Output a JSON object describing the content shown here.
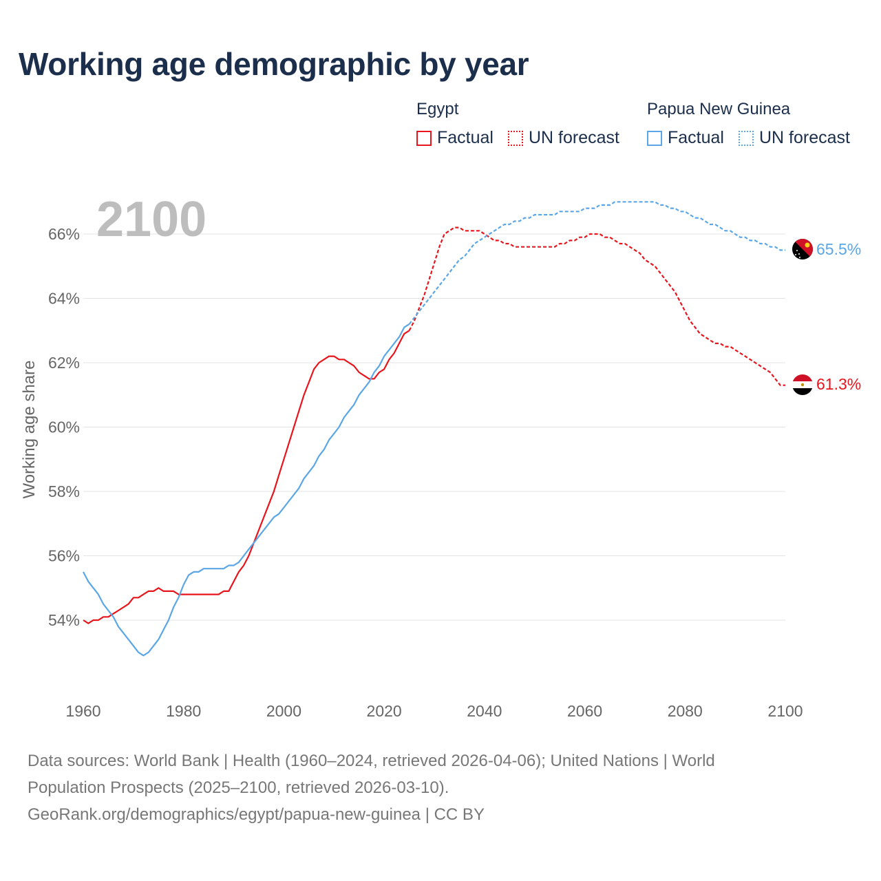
{
  "title": "Working age demographic by year",
  "legend": {
    "groups": [
      {
        "name": "Egypt",
        "color": "#e8141c",
        "items": [
          {
            "label": "Factual",
            "style": "solid"
          },
          {
            "label": "UN forecast",
            "style": "dotted"
          }
        ]
      },
      {
        "name": "Papua New Guinea",
        "color": "#5aa6e6",
        "items": [
          {
            "label": "Factual",
            "style": "solid"
          },
          {
            "label": "UN forecast",
            "style": "dotted"
          }
        ]
      }
    ]
  },
  "year_watermark": "2100",
  "footer": {
    "line1": "Data sources: World Bank | Health (1960–2024, retrieved 2026-04-06); United Nations | World",
    "line2": "Population Prospects (2025–2100, retrieved 2026-03-10).",
    "line3": "GeoRank.org/demographics/egypt/papua-new-guinea | CC BY"
  },
  "chart_data": {
    "type": "line",
    "title": "Working age demographic by year",
    "xlabel": "",
    "ylabel": "Working age share",
    "xlim": [
      1960,
      2100
    ],
    "ylim": [
      52,
      67.2
    ],
    "x_ticks": [
      1960,
      1980,
      2000,
      2020,
      2040,
      2060,
      2080,
      2100
    ],
    "y_ticks": [
      54,
      56,
      58,
      60,
      62,
      64,
      66
    ],
    "y_tick_labels": [
      "54%",
      "56%",
      "58%",
      "60%",
      "62%",
      "64%",
      "66%"
    ],
    "x_tick_labels": [
      "1960",
      "1980",
      "2000",
      "2020",
      "2040",
      "2060",
      "2080",
      "2100"
    ],
    "grid": true,
    "forecast_start": 2025,
    "series": [
      {
        "name": "Egypt",
        "color": "#e8141c",
        "end_label": "61.3%",
        "points": [
          [
            1960,
            54.0
          ],
          [
            1961,
            53.9
          ],
          [
            1962,
            54.0
          ],
          [
            1963,
            54.0
          ],
          [
            1964,
            54.1
          ],
          [
            1965,
            54.1
          ],
          [
            1966,
            54.2
          ],
          [
            1967,
            54.3
          ],
          [
            1968,
            54.4
          ],
          [
            1969,
            54.5
          ],
          [
            1970,
            54.7
          ],
          [
            1971,
            54.7
          ],
          [
            1972,
            54.8
          ],
          [
            1973,
            54.9
          ],
          [
            1974,
            54.9
          ],
          [
            1975,
            55.0
          ],
          [
            1976,
            54.9
          ],
          [
            1977,
            54.9
          ],
          [
            1978,
            54.9
          ],
          [
            1979,
            54.8
          ],
          [
            1980,
            54.8
          ],
          [
            1982,
            54.8
          ],
          [
            1984,
            54.8
          ],
          [
            1987,
            54.8
          ],
          [
            1988,
            54.9
          ],
          [
            1989,
            54.9
          ],
          [
            1990,
            55.2
          ],
          [
            1991,
            55.5
          ],
          [
            1992,
            55.7
          ],
          [
            1993,
            56.0
          ],
          [
            1994,
            56.4
          ],
          [
            1995,
            56.8
          ],
          [
            1996,
            57.2
          ],
          [
            1997,
            57.6
          ],
          [
            1998,
            58.0
          ],
          [
            1999,
            58.5
          ],
          [
            2000,
            59.0
          ],
          [
            2001,
            59.5
          ],
          [
            2002,
            60.0
          ],
          [
            2003,
            60.5
          ],
          [
            2004,
            61.0
          ],
          [
            2005,
            61.4
          ],
          [
            2006,
            61.8
          ],
          [
            2007,
            62.0
          ],
          [
            2008,
            62.1
          ],
          [
            2009,
            62.2
          ],
          [
            2010,
            62.2
          ],
          [
            2011,
            62.1
          ],
          [
            2012,
            62.1
          ],
          [
            2013,
            62.0
          ],
          [
            2014,
            61.9
          ],
          [
            2015,
            61.7
          ],
          [
            2016,
            61.6
          ],
          [
            2017,
            61.5
          ],
          [
            2018,
            61.5
          ],
          [
            2019,
            61.7
          ],
          [
            2020,
            61.8
          ],
          [
            2021,
            62.1
          ],
          [
            2022,
            62.3
          ],
          [
            2023,
            62.6
          ],
          [
            2024,
            62.9
          ],
          [
            2025,
            63.0
          ],
          [
            2026,
            63.3
          ],
          [
            2027,
            63.7
          ],
          [
            2028,
            64.1
          ],
          [
            2029,
            64.6
          ],
          [
            2030,
            65.1
          ],
          [
            2031,
            65.6
          ],
          [
            2032,
            66.0
          ],
          [
            2033,
            66.1
          ],
          [
            2034,
            66.2
          ],
          [
            2035,
            66.2
          ],
          [
            2036,
            66.1
          ],
          [
            2037,
            66.1
          ],
          [
            2038,
            66.1
          ],
          [
            2039,
            66.1
          ],
          [
            2040,
            66.0
          ],
          [
            2041,
            65.9
          ],
          [
            2042,
            65.8
          ],
          [
            2043,
            65.8
          ],
          [
            2044,
            65.7
          ],
          [
            2045,
            65.7
          ],
          [
            2046,
            65.6
          ],
          [
            2048,
            65.6
          ],
          [
            2050,
            65.6
          ],
          [
            2052,
            65.6
          ],
          [
            2054,
            65.6
          ],
          [
            2055,
            65.7
          ],
          [
            2056,
            65.7
          ],
          [
            2057,
            65.8
          ],
          [
            2058,
            65.8
          ],
          [
            2059,
            65.9
          ],
          [
            2060,
            65.9
          ],
          [
            2061,
            66.0
          ],
          [
            2062,
            66.0
          ],
          [
            2063,
            66.0
          ],
          [
            2064,
            65.9
          ],
          [
            2065,
            65.9
          ],
          [
            2066,
            65.8
          ],
          [
            2067,
            65.7
          ],
          [
            2068,
            65.7
          ],
          [
            2069,
            65.6
          ],
          [
            2070,
            65.5
          ],
          [
            2071,
            65.4
          ],
          [
            2072,
            65.2
          ],
          [
            2073,
            65.1
          ],
          [
            2074,
            65.0
          ],
          [
            2075,
            64.8
          ],
          [
            2076,
            64.6
          ],
          [
            2077,
            64.4
          ],
          [
            2078,
            64.2
          ],
          [
            2079,
            63.9
          ],
          [
            2080,
            63.6
          ],
          [
            2081,
            63.3
          ],
          [
            2082,
            63.1
          ],
          [
            2083,
            62.9
          ],
          [
            2084,
            62.8
          ],
          [
            2085,
            62.7
          ],
          [
            2086,
            62.6
          ],
          [
            2087,
            62.6
          ],
          [
            2088,
            62.5
          ],
          [
            2089,
            62.5
          ],
          [
            2090,
            62.4
          ],
          [
            2091,
            62.3
          ],
          [
            2092,
            62.2
          ],
          [
            2093,
            62.1
          ],
          [
            2094,
            62.0
          ],
          [
            2095,
            61.9
          ],
          [
            2096,
            61.8
          ],
          [
            2097,
            61.7
          ],
          [
            2098,
            61.5
          ],
          [
            2099,
            61.3
          ],
          [
            2100,
            61.3
          ]
        ]
      },
      {
        "name": "Papua New Guinea",
        "color": "#5aa6e6",
        "end_label": "65.5%",
        "points": [
          [
            1960,
            55.5
          ],
          [
            1961,
            55.2
          ],
          [
            1962,
            55.0
          ],
          [
            1963,
            54.8
          ],
          [
            1964,
            54.5
          ],
          [
            1965,
            54.3
          ],
          [
            1966,
            54.1
          ],
          [
            1967,
            53.8
          ],
          [
            1968,
            53.6
          ],
          [
            1969,
            53.4
          ],
          [
            1970,
            53.2
          ],
          [
            1971,
            53.0
          ],
          [
            1972,
            52.9
          ],
          [
            1973,
            53.0
          ],
          [
            1974,
            53.2
          ],
          [
            1975,
            53.4
          ],
          [
            1976,
            53.7
          ],
          [
            1977,
            54.0
          ],
          [
            1978,
            54.4
          ],
          [
            1979,
            54.7
          ],
          [
            1980,
            55.1
          ],
          [
            1981,
            55.4
          ],
          [
            1982,
            55.5
          ],
          [
            1983,
            55.5
          ],
          [
            1984,
            55.6
          ],
          [
            1985,
            55.6
          ],
          [
            1986,
            55.6
          ],
          [
            1987,
            55.6
          ],
          [
            1988,
            55.6
          ],
          [
            1989,
            55.7
          ],
          [
            1990,
            55.7
          ],
          [
            1991,
            55.8
          ],
          [
            1992,
            56.0
          ],
          [
            1993,
            56.2
          ],
          [
            1994,
            56.4
          ],
          [
            1995,
            56.6
          ],
          [
            1996,
            56.8
          ],
          [
            1997,
            57.0
          ],
          [
            1998,
            57.2
          ],
          [
            1999,
            57.3
          ],
          [
            2000,
            57.5
          ],
          [
            2001,
            57.7
          ],
          [
            2002,
            57.9
          ],
          [
            2003,
            58.1
          ],
          [
            2004,
            58.4
          ],
          [
            2005,
            58.6
          ],
          [
            2006,
            58.8
          ],
          [
            2007,
            59.1
          ],
          [
            2008,
            59.3
          ],
          [
            2009,
            59.6
          ],
          [
            2010,
            59.8
          ],
          [
            2011,
            60.0
          ],
          [
            2012,
            60.3
          ],
          [
            2013,
            60.5
          ],
          [
            2014,
            60.7
          ],
          [
            2015,
            61.0
          ],
          [
            2016,
            61.2
          ],
          [
            2017,
            61.4
          ],
          [
            2018,
            61.7
          ],
          [
            2019,
            61.9
          ],
          [
            2020,
            62.2
          ],
          [
            2021,
            62.4
          ],
          [
            2022,
            62.6
          ],
          [
            2023,
            62.8
          ],
          [
            2024,
            63.1
          ],
          [
            2025,
            63.2
          ],
          [
            2026,
            63.4
          ],
          [
            2027,
            63.6
          ],
          [
            2028,
            63.8
          ],
          [
            2029,
            64.0
          ],
          [
            2030,
            64.2
          ],
          [
            2031,
            64.4
          ],
          [
            2032,
            64.6
          ],
          [
            2033,
            64.8
          ],
          [
            2034,
            65.0
          ],
          [
            2035,
            65.2
          ],
          [
            2036,
            65.3
          ],
          [
            2037,
            65.5
          ],
          [
            2038,
            65.7
          ],
          [
            2039,
            65.8
          ],
          [
            2040,
            65.9
          ],
          [
            2041,
            66.0
          ],
          [
            2042,
            66.1
          ],
          [
            2043,
            66.2
          ],
          [
            2044,
            66.3
          ],
          [
            2045,
            66.3
          ],
          [
            2046,
            66.4
          ],
          [
            2047,
            66.4
          ],
          [
            2048,
            66.5
          ],
          [
            2049,
            66.5
          ],
          [
            2050,
            66.6
          ],
          [
            2051,
            66.6
          ],
          [
            2052,
            66.6
          ],
          [
            2053,
            66.6
          ],
          [
            2054,
            66.6
          ],
          [
            2055,
            66.7
          ],
          [
            2056,
            66.7
          ],
          [
            2057,
            66.7
          ],
          [
            2058,
            66.7
          ],
          [
            2059,
            66.7
          ],
          [
            2060,
            66.8
          ],
          [
            2061,
            66.8
          ],
          [
            2062,
            66.8
          ],
          [
            2063,
            66.9
          ],
          [
            2064,
            66.9
          ],
          [
            2065,
            66.9
          ],
          [
            2066,
            67.0
          ],
          [
            2067,
            67.0
          ],
          [
            2068,
            67.0
          ],
          [
            2069,
            67.0
          ],
          [
            2070,
            67.0
          ],
          [
            2071,
            67.0
          ],
          [
            2072,
            67.0
          ],
          [
            2073,
            67.0
          ],
          [
            2074,
            67.0
          ],
          [
            2075,
            66.9
          ],
          [
            2076,
            66.9
          ],
          [
            2077,
            66.8
          ],
          [
            2078,
            66.8
          ],
          [
            2079,
            66.7
          ],
          [
            2080,
            66.7
          ],
          [
            2081,
            66.6
          ],
          [
            2082,
            66.5
          ],
          [
            2083,
            66.5
          ],
          [
            2084,
            66.4
          ],
          [
            2085,
            66.3
          ],
          [
            2086,
            66.3
          ],
          [
            2087,
            66.2
          ],
          [
            2088,
            66.1
          ],
          [
            2089,
            66.1
          ],
          [
            2090,
            66.0
          ],
          [
            2091,
            65.9
          ],
          [
            2092,
            65.9
          ],
          [
            2093,
            65.8
          ],
          [
            2094,
            65.8
          ],
          [
            2095,
            65.7
          ],
          [
            2096,
            65.7
          ],
          [
            2097,
            65.6
          ],
          [
            2098,
            65.6
          ],
          [
            2099,
            65.5
          ],
          [
            2100,
            65.5
          ]
        ]
      }
    ]
  }
}
